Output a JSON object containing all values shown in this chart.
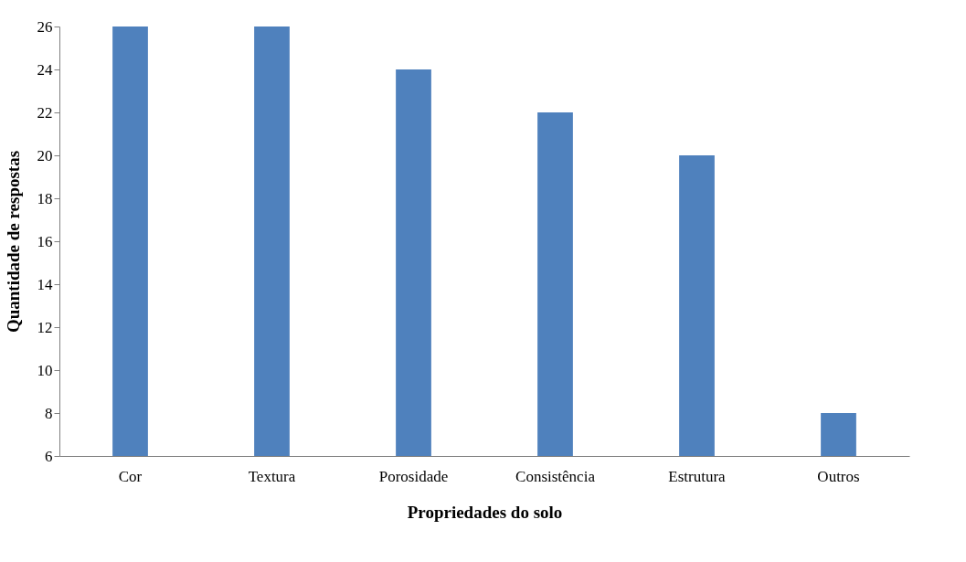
{
  "chart_data": {
    "type": "bar",
    "xlabel": "Propriedades do solo",
    "ylabel": "Quantidade de respostas",
    "categories": [
      "Cor",
      "Textura",
      "Porosidade",
      "Consistência",
      "Estrutura",
      "Outros"
    ],
    "values": [
      26,
      26,
      24,
      22,
      20,
      8
    ],
    "color": "#4f81bd",
    "ylim": [
      6,
      26
    ],
    "yticks": [
      6,
      8,
      10,
      12,
      14,
      16,
      18,
      20,
      22,
      24,
      26
    ],
    "grid": false
  }
}
